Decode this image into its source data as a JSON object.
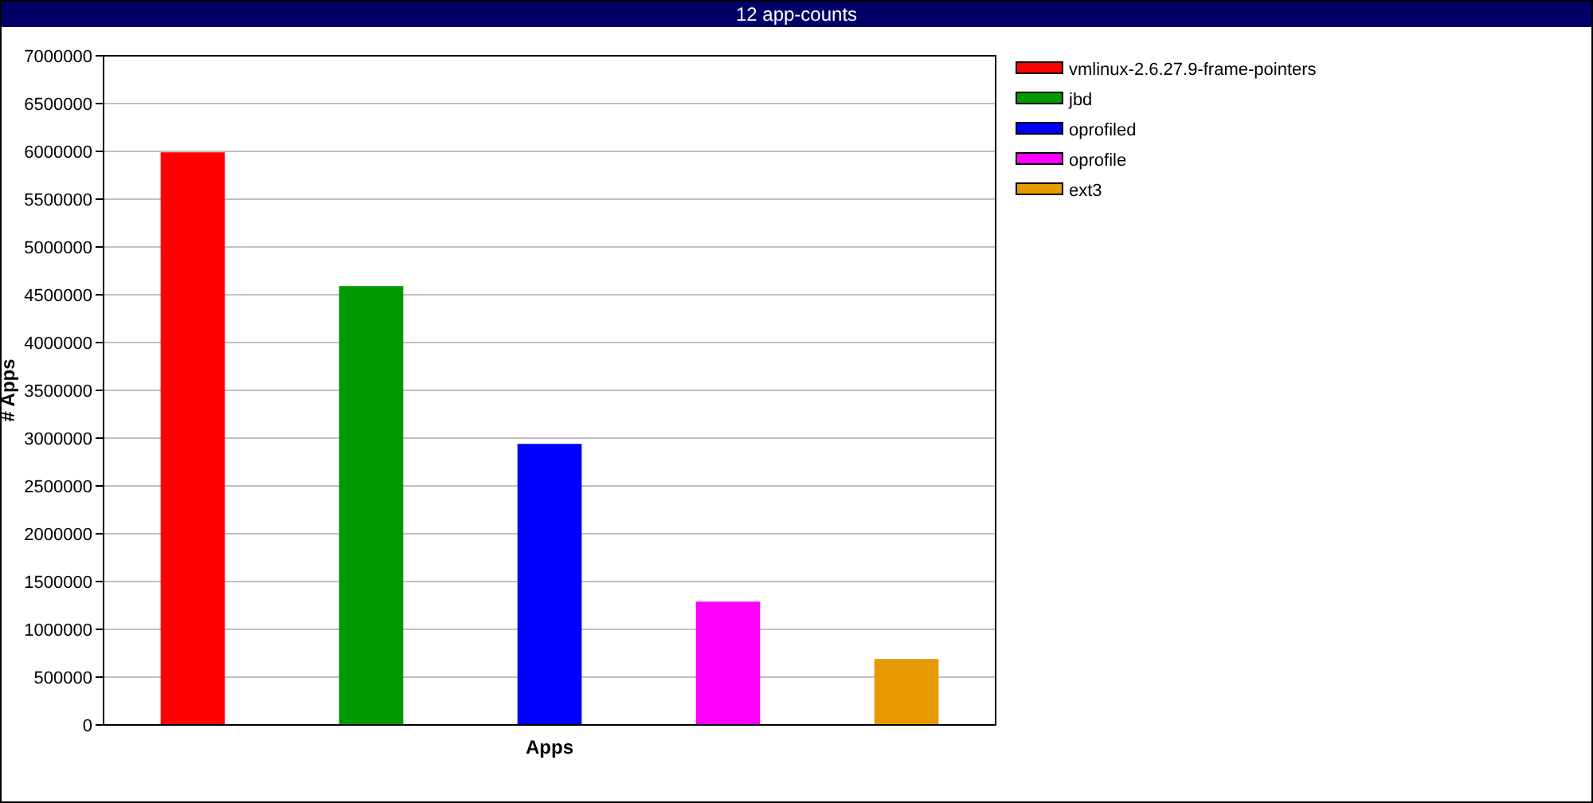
{
  "chart_data": {
    "type": "bar",
    "title": "12 app-counts",
    "xlabel": "Apps",
    "ylabel": "# Apps",
    "categories": [
      null,
      null,
      null,
      null,
      null
    ],
    "series": [
      {
        "name": "vmlinux-2.6.27.9-frame-pointers",
        "color": "#ff0000",
        "values": [
          5990000,
          null,
          null,
          null,
          null
        ]
      },
      {
        "name": "jbd",
        "color": "#009900",
        "values": [
          null,
          4590000,
          null,
          null,
          null
        ]
      },
      {
        "name": "oprofiled",
        "color": "#0000ff",
        "values": [
          null,
          null,
          2940000,
          null,
          null
        ]
      },
      {
        "name": "oprofile",
        "color": "#ff00ff",
        "values": [
          null,
          null,
          null,
          1290000,
          null
        ]
      },
      {
        "name": "ext3",
        "color": "#e69900",
        "values": [
          null,
          null,
          null,
          null,
          690000
        ]
      }
    ],
    "ylim": [
      0,
      7000000
    ],
    "yticks": [
      0,
      500000,
      1000000,
      1500000,
      2000000,
      2500000,
      3000000,
      3500000,
      4000000,
      4500000,
      5000000,
      5500000,
      6000000,
      6500000,
      7000000
    ],
    "grid": "y",
    "legend": "top right"
  }
}
